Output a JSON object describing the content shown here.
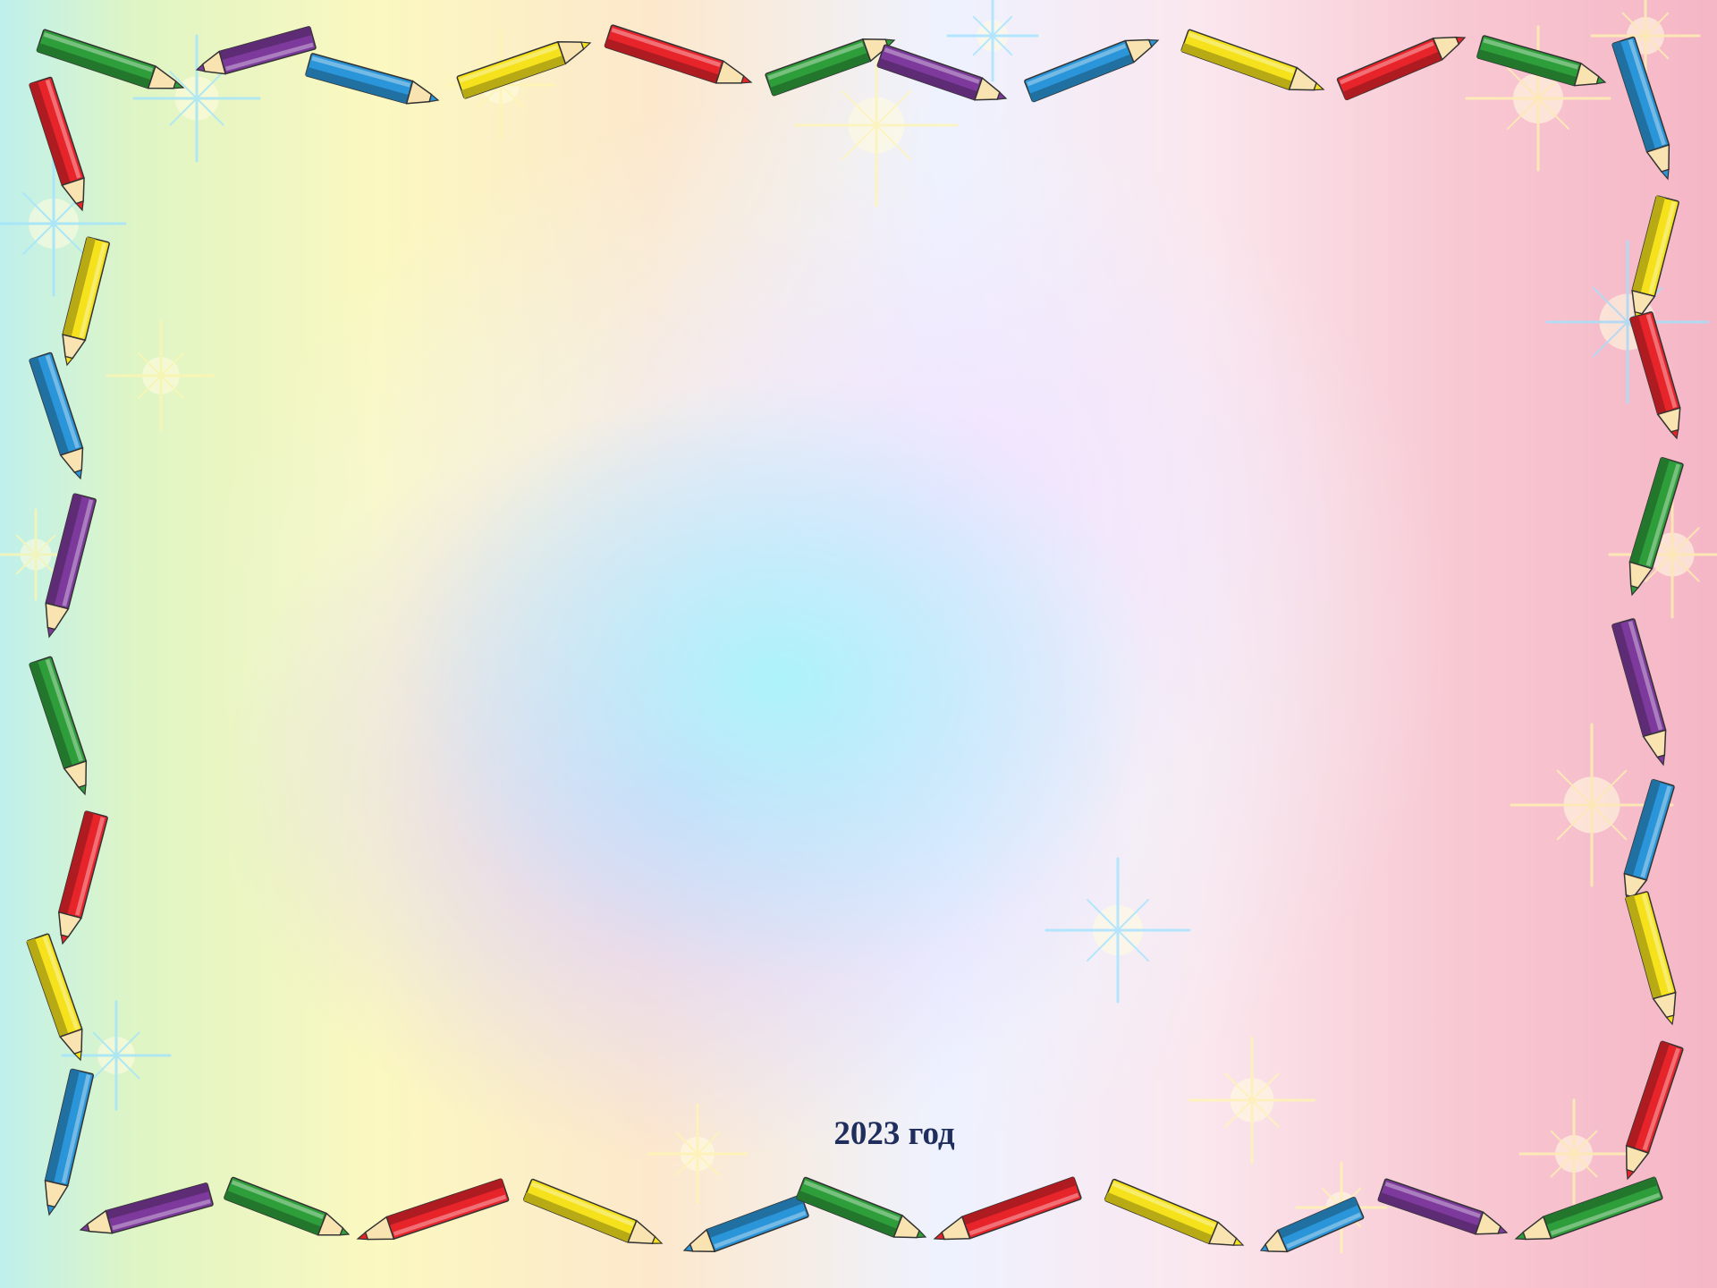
{
  "slide": {
    "year_text": "2023 год"
  },
  "colors": {
    "pencil_red": "#e8242b",
    "pencil_green": "#2e9e3a",
    "pencil_blue": "#2a95d8",
    "pencil_yellow": "#f5e21c",
    "pencil_purple": "#7d3a9c",
    "text": "#1f2e5c"
  },
  "decoration": {
    "frame_icon": "pencil-border",
    "sparkle_icon": "star-sparkle"
  }
}
